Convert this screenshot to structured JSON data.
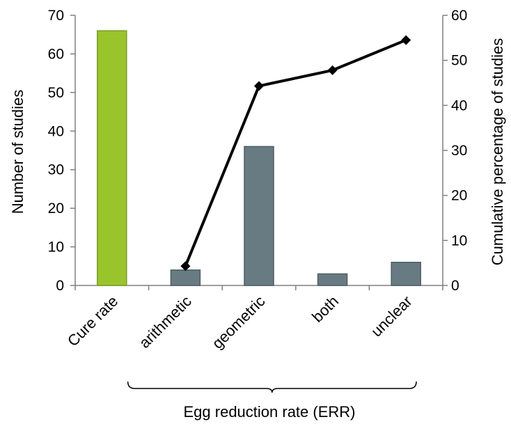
{
  "chart_data": {
    "type": "bar",
    "categories": [
      "Cure rate",
      "arithmetic",
      "geometric",
      "both",
      "unclear"
    ],
    "series": [
      {
        "values": [
          66,
          4,
          36,
          3,
          6
        ],
        "colors": [
          "#9ac42c",
          "#687b83",
          "#687b83",
          "#687b83",
          "#687b83"
        ],
        "axis": "left"
      },
      {
        "type": "line",
        "values": [
          null,
          4.3,
          44.3,
          47.8,
          54.5
        ],
        "color": "#000000",
        "marker": "diamond",
        "axis": "right"
      }
    ],
    "ylabel": "Number of studies",
    "ylim": [
      0,
      70
    ],
    "yticks": [
      0,
      10,
      20,
      30,
      40,
      50,
      60,
      70
    ],
    "y2label": "Cumulative percentage of studies",
    "y2lim": [
      0,
      60
    ],
    "y2ticks": [
      0,
      10,
      20,
      30,
      40,
      50,
      60
    ],
    "group_label": "Egg reduction rate (ERR)",
    "grid": false,
    "legend": "none"
  }
}
